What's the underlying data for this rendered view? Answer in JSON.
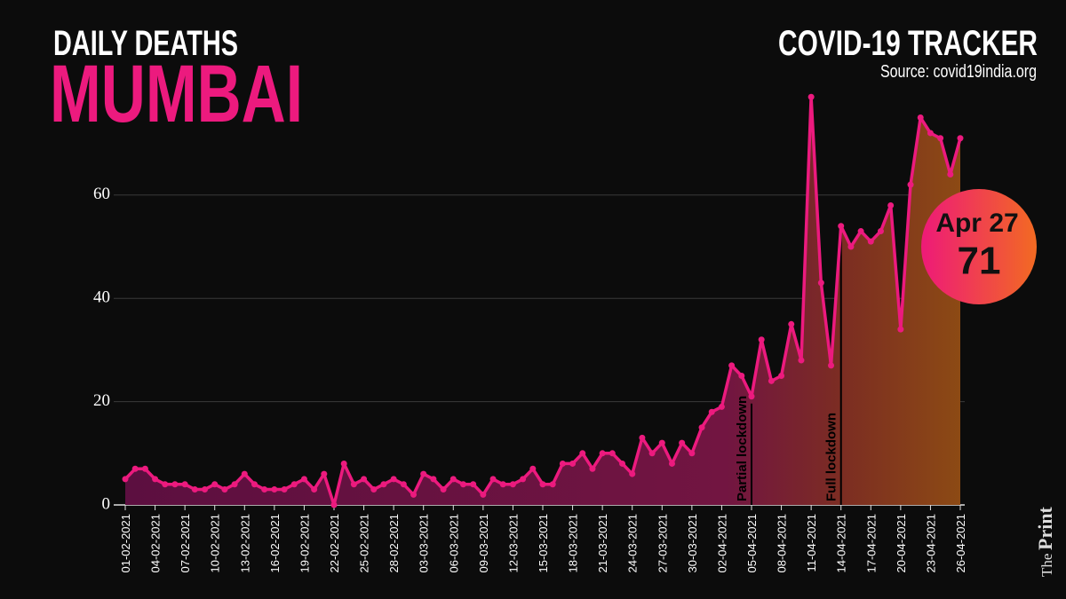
{
  "header": {
    "subtitle": "DAILY DEATHS",
    "title": "MUMBAI",
    "tracker": "COVID-19 TRACKER",
    "source": "Source: covid19india.org"
  },
  "logo": {
    "prefix": "The",
    "name": "Print"
  },
  "chart_data": {
    "type": "line",
    "categories": [
      "01-02-2021",
      null,
      null,
      "04-02-2021",
      null,
      null,
      "07-02-2021",
      null,
      null,
      "10-02-2021",
      null,
      null,
      "13-02-2021",
      null,
      null,
      "16-02-2021",
      null,
      null,
      "19-02-2021",
      null,
      null,
      "22-02-2021",
      null,
      null,
      "25-02-2021",
      null,
      null,
      "28-02-2021",
      null,
      null,
      "03-03-2021",
      null,
      null,
      "06-03-2021",
      null,
      null,
      "09-03-2021",
      null,
      null,
      "12-03-2021",
      null,
      null,
      "15-03-2021",
      null,
      null,
      "18-03-2021",
      null,
      null,
      "21-03-2021",
      null,
      null,
      "24-03-2021",
      null,
      null,
      "27-03-2021",
      null,
      null,
      "30-03-2021",
      null,
      null,
      "02-04-2021",
      null,
      null,
      "05-04-2021",
      null,
      null,
      "08-04-2021",
      null,
      null,
      "11-04-2021",
      null,
      null,
      "14-04-2021",
      null,
      null,
      "17-04-2021",
      null,
      null,
      "20-04-2021",
      null,
      null,
      "23-04-2021",
      null,
      null,
      "26-04-2021"
    ],
    "values": [
      5,
      7,
      7,
      5,
      4,
      4,
      4,
      3,
      3,
      4,
      3,
      4,
      6,
      4,
      3,
      3,
      3,
      4,
      5,
      3,
      6,
      0,
      8,
      4,
      5,
      3,
      4,
      5,
      4,
      2,
      6,
      5,
      3,
      5,
      4,
      4,
      2,
      5,
      4,
      4,
      5,
      7,
      4,
      4,
      8,
      8,
      10,
      7,
      10,
      10,
      8,
      6,
      13,
      10,
      12,
      8,
      12,
      10,
      15,
      18,
      19,
      27,
      25,
      21,
      32,
      24,
      25,
      35,
      28,
      79,
      43,
      27,
      54,
      50,
      53,
      51,
      53,
      58,
      34,
      62,
      75,
      72,
      71,
      64,
      71
    ],
    "color": "#ec1a7e",
    "ylim": [
      0,
      80
    ],
    "yticks": [
      0,
      20,
      40,
      60
    ],
    "grid": true,
    "annotations": [
      {
        "text": "Partial lockdown",
        "x": "05-04-2021"
      },
      {
        "text": "Full lockdown",
        "x": "14-04-2021"
      }
    ],
    "callout": {
      "label": "Apr 27",
      "value": 71
    }
  }
}
